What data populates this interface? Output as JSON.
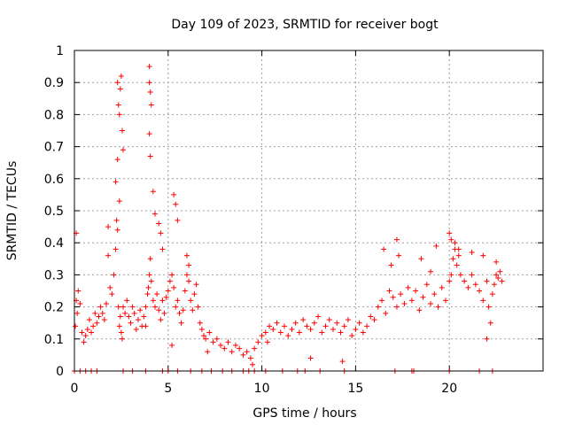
{
  "chart_data": {
    "type": "scatter",
    "title": "Day 109 of 2023, SRMTID for receiver bogt",
    "xlabel": "GPS time / hours",
    "ylabel": "SRMTID / TECUs",
    "xlim": [
      0,
      25
    ],
    "ylim": [
      0,
      1
    ],
    "xticks": [
      0,
      5,
      10,
      15,
      20
    ],
    "xtick_labels": [
      "0",
      "5",
      "10",
      "15",
      "20"
    ],
    "yticks": [
      0,
      0.1,
      0.2,
      0.3,
      0.4,
      0.5,
      0.6,
      0.7,
      0.8,
      0.9,
      1
    ],
    "ytick_labels": [
      "0",
      "0.1",
      "0.2",
      "0.3",
      "0.4",
      "0.5",
      "0.6",
      "0.7",
      "0.8",
      "0.9",
      "1"
    ],
    "grid": true,
    "marker": "+",
    "marker_color": "#ff0000",
    "series": [
      {
        "name": "SRMTID",
        "x": [
          0.05,
          0.1,
          0.15,
          0.2,
          0.3,
          0.4,
          0.5,
          0.6,
          0.7,
          0.8,
          0.9,
          1.0,
          1.1,
          1.2,
          1.3,
          1.4,
          1.5,
          1.6,
          1.7,
          1.8,
          1.9,
          2.0,
          2.1,
          2.2,
          2.25,
          2.3,
          2.35,
          2.4,
          2.45,
          2.5,
          2.55,
          2.6,
          2.7,
          2.8,
          2.9,
          3.0,
          3.1,
          3.2,
          3.3,
          3.4,
          3.5,
          3.6,
          3.7,
          3.8,
          3.9,
          3.95,
          4.0,
          4.05,
          4.1,
          4.2,
          4.3,
          4.4,
          4.5,
          4.6,
          4.7,
          4.8,
          4.9,
          5.0,
          5.1,
          5.2,
          5.3,
          5.4,
          5.5,
          5.6,
          5.7,
          5.8,
          5.9,
          6.0,
          6.1,
          6.2,
          6.3,
          6.4,
          6.5,
          6.6,
          6.7,
          6.8,
          6.9,
          7.0,
          7.2,
          7.4,
          7.6,
          7.8,
          8.0,
          8.2,
          8.4,
          8.6,
          8.8,
          9.0,
          9.2,
          9.4,
          9.6,
          9.8,
          10.0,
          10.2,
          10.4,
          10.6,
          10.8,
          11.0,
          11.2,
          11.4,
          11.6,
          11.8,
          12.0,
          12.2,
          12.4,
          12.6,
          12.8,
          13.0,
          13.2,
          13.4,
          13.6,
          13.8,
          14.0,
          14.2,
          14.4,
          14.6,
          14.8,
          15.0,
          15.2,
          15.4,
          15.6,
          15.8,
          16.0,
          16.2,
          16.4,
          16.6,
          16.8,
          17.0,
          17.2,
          17.4,
          17.6,
          17.8,
          18.0,
          18.2,
          18.4,
          18.6,
          18.8,
          19.0,
          19.2,
          19.4,
          19.6,
          19.8,
          20.0,
          20.1,
          20.2,
          20.3,
          20.4,
          20.5,
          20.6,
          20.8,
          21.0,
          21.2,
          21.4,
          21.6,
          21.8,
          22.0,
          22.1,
          22.2,
          22.3,
          22.4,
          22.5,
          22.6,
          22.7,
          22.8,
          2.2,
          2.3,
          2.35,
          2.4,
          2.45,
          2.5,
          2.55,
          2.6,
          2.3,
          2.4,
          4.0,
          4.0,
          4.05,
          4.1,
          4.0,
          4.05,
          4.2,
          4.3,
          4.5,
          4.6,
          4.7,
          5.3,
          5.4,
          5.5,
          6.0,
          6.1,
          0.1,
          1.8,
          3.8,
          5.2,
          7.1,
          9.5,
          10.3,
          12.6,
          14.3,
          17.2,
          17.3,
          19.3,
          20.0,
          20.1,
          20.3,
          20.5,
          21.2,
          21.8,
          22.0,
          22.5,
          16.5,
          16.9,
          18.5,
          19.0,
          0.0,
          0.3,
          0.6,
          0.9,
          1.2,
          2.6,
          3.1,
          3.8,
          4.7,
          5.0,
          5.5,
          6.2,
          6.8,
          7.3,
          7.9,
          8.4,
          9.0,
          9.3,
          9.6,
          10.2,
          11.1,
          11.9,
          12.3,
          13.1,
          14.4,
          17.1,
          18.0,
          18.1,
          20.0,
          21.6,
          22.3
        ],
        "y": [
          0.14,
          0.22,
          0.18,
          0.25,
          0.21,
          0.12,
          0.09,
          0.11,
          0.13,
          0.16,
          0.12,
          0.14,
          0.18,
          0.15,
          0.17,
          0.2,
          0.18,
          0.16,
          0.21,
          0.36,
          0.26,
          0.24,
          0.3,
          0.38,
          0.47,
          0.44,
          0.2,
          0.14,
          0.17,
          0.12,
          0.1,
          0.2,
          0.18,
          0.22,
          0.17,
          0.15,
          0.2,
          0.18,
          0.13,
          0.16,
          0.19,
          0.14,
          0.17,
          0.2,
          0.24,
          0.26,
          0.3,
          0.35,
          0.28,
          0.22,
          0.2,
          0.24,
          0.19,
          0.16,
          0.22,
          0.18,
          0.23,
          0.25,
          0.28,
          0.3,
          0.26,
          0.2,
          0.22,
          0.18,
          0.15,
          0.19,
          0.25,
          0.3,
          0.28,
          0.22,
          0.19,
          0.24,
          0.27,
          0.2,
          0.15,
          0.13,
          0.11,
          0.1,
          0.12,
          0.09,
          0.1,
          0.08,
          0.07,
          0.09,
          0.06,
          0.08,
          0.07,
          0.05,
          0.06,
          0.04,
          0.07,
          0.09,
          0.11,
          0.12,
          0.14,
          0.13,
          0.15,
          0.12,
          0.14,
          0.11,
          0.13,
          0.15,
          0.12,
          0.16,
          0.14,
          0.13,
          0.15,
          0.17,
          0.12,
          0.14,
          0.16,
          0.13,
          0.15,
          0.12,
          0.14,
          0.16,
          0.11,
          0.13,
          0.15,
          0.12,
          0.14,
          0.17,
          0.16,
          0.2,
          0.22,
          0.18,
          0.25,
          0.23,
          0.2,
          0.24,
          0.21,
          0.26,
          0.22,
          0.25,
          0.19,
          0.23,
          0.27,
          0.21,
          0.24,
          0.2,
          0.26,
          0.22,
          0.28,
          0.3,
          0.35,
          0.38,
          0.33,
          0.36,
          0.3,
          0.28,
          0.26,
          0.3,
          0.27,
          0.25,
          0.22,
          0.28,
          0.2,
          0.15,
          0.24,
          0.27,
          0.3,
          0.29,
          0.31,
          0.28,
          0.59,
          0.9,
          0.83,
          0.8,
          0.88,
          0.92,
          0.75,
          0.69,
          0.66,
          0.53,
          0.95,
          0.9,
          0.87,
          0.83,
          0.74,
          0.67,
          0.56,
          0.49,
          0.46,
          0.43,
          0.38,
          0.55,
          0.52,
          0.47,
          0.36,
          0.33,
          0.43,
          0.45,
          0.14,
          0.08,
          0.06,
          0.02,
          0.09,
          0.04,
          0.03,
          0.41,
          0.36,
          0.39,
          0.43,
          0.41,
          0.4,
          0.38,
          0.37,
          0.36,
          0.1,
          0.34,
          0.38,
          0.33,
          0.35,
          0.31,
          0.0,
          0.0,
          0.0,
          0.0,
          0.0,
          0.0,
          0.0,
          0.0,
          0.0,
          0.0,
          0.0,
          0.0,
          0.0,
          0.0,
          0.0,
          0.0,
          0.0,
          0.0,
          0.0,
          0.0,
          0.0,
          0.0,
          0.0,
          0.0,
          0.0,
          0.0,
          0.0,
          0.0,
          0.0,
          0.0,
          0.0
        ]
      }
    ]
  }
}
